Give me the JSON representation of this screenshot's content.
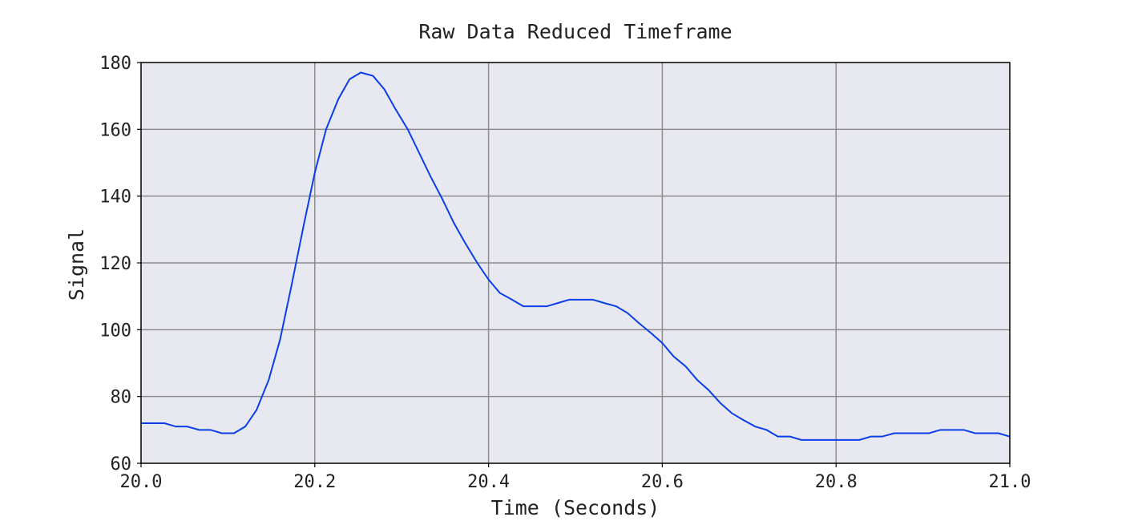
{
  "chart_data": {
    "type": "line",
    "title": "Raw Data Reduced Timeframe",
    "xlabel": "Time (Seconds)",
    "ylabel": "Signal",
    "xlim": [
      20.0,
      21.0
    ],
    "ylim": [
      60,
      180
    ],
    "x_ticks": [
      20.0,
      20.2,
      20.4,
      20.6,
      20.8,
      21.0
    ],
    "x_tick_labels": [
      "20.0",
      "20.2",
      "20.4",
      "20.6",
      "20.8",
      "21.0"
    ],
    "y_ticks": [
      60,
      80,
      100,
      120,
      140,
      160,
      180
    ],
    "y_tick_labels": [
      "60",
      "80",
      "100",
      "120",
      "140",
      "160",
      "180"
    ],
    "grid": true,
    "colors": {
      "plot_background": "#e8e8f1",
      "grid": "#8c8c8c",
      "line": "#0a3ee8",
      "axis": "#000000"
    },
    "series": [
      {
        "name": "Signal",
        "x": [
          20.0,
          20.013,
          20.027,
          20.04,
          20.053,
          20.067,
          20.08,
          20.093,
          20.107,
          20.12,
          20.133,
          20.147,
          20.16,
          20.173,
          20.187,
          20.2,
          20.213,
          20.227,
          20.24,
          20.253,
          20.267,
          20.28,
          20.293,
          20.307,
          20.32,
          20.333,
          20.347,
          20.36,
          20.373,
          20.387,
          20.4,
          20.413,
          20.427,
          20.44,
          20.453,
          20.467,
          20.48,
          20.493,
          20.507,
          20.52,
          20.533,
          20.547,
          20.56,
          20.573,
          20.587,
          20.6,
          20.613,
          20.627,
          20.64,
          20.653,
          20.667,
          20.68,
          20.693,
          20.707,
          20.72,
          20.733,
          20.747,
          20.76,
          20.773,
          20.787,
          20.8,
          20.813,
          20.827,
          20.84,
          20.853,
          20.867,
          20.88,
          20.893,
          20.907,
          20.92,
          20.933,
          20.947,
          20.96,
          20.973,
          20.987,
          21.0
        ],
        "y": [
          72,
          72,
          72,
          71,
          71,
          70,
          70,
          69,
          69,
          71,
          76,
          85,
          97,
          113,
          131,
          147,
          160,
          169,
          175,
          177,
          176,
          172,
          166,
          160,
          153,
          146,
          139,
          132,
          126,
          120,
          115,
          111,
          109,
          107,
          107,
          107,
          108,
          109,
          109,
          109,
          108,
          107,
          105,
          102,
          99,
          96,
          92,
          89,
          85,
          82,
          78,
          75,
          73,
          71,
          70,
          68,
          68,
          67,
          67,
          67,
          67,
          67,
          67,
          68,
          68,
          69,
          69,
          69,
          69,
          70,
          70,
          70,
          69,
          69,
          69,
          68
        ]
      }
    ]
  }
}
